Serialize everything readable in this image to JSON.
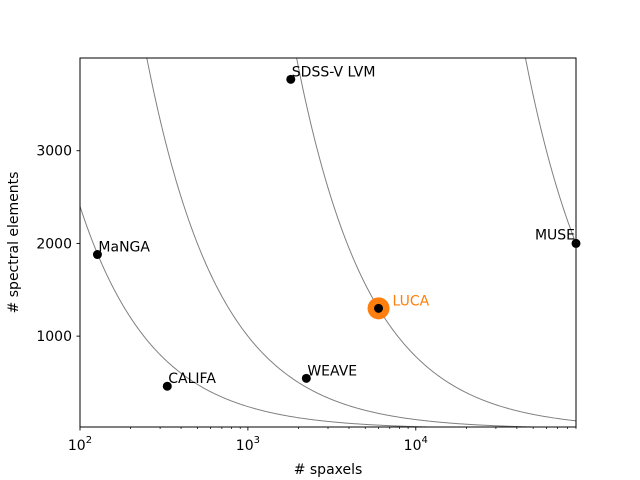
{
  "chart_data": {
    "type": "scatter",
    "xlabel": "# spaxels",
    "ylabel": "# spectral elements",
    "xscale": "log",
    "xlim": [
      100,
      90000
    ],
    "ylim": [
      20,
      4000
    ],
    "grid": false,
    "x_ticks": [
      {
        "value": 100,
        "base": "10",
        "exp": "2"
      },
      {
        "value": 1000,
        "base": "10",
        "exp": "3"
      },
      {
        "value": 10000,
        "base": "10",
        "exp": "4"
      }
    ],
    "y_ticks": [
      {
        "value": 1000,
        "label": "1000"
      },
      {
        "value": 2000,
        "label": "2000"
      },
      {
        "value": 3000,
        "label": "3000"
      }
    ],
    "points": [
      {
        "name": "MaNGA",
        "x": 127,
        "y": 1880,
        "label_anchor": "start"
      },
      {
        "name": "CALIFA",
        "x": 331,
        "y": 460,
        "label_anchor": "start"
      },
      {
        "name": "SDSS-V LVM",
        "x": 1801,
        "y": 3770,
        "label_anchor": "start"
      },
      {
        "name": "WEAVE",
        "x": 2229,
        "y": 545,
        "label_anchor": "start"
      },
      {
        "name": "MUSE",
        "x": 90000,
        "y": 2000,
        "label_anchor": "end"
      },
      {
        "name": "LUCA",
        "x": 6000,
        "y": 1300,
        "label_anchor": "start",
        "highlight": true
      }
    ],
    "iso_curves": [
      {
        "product": 240000
      },
      {
        "product": 1000000
      },
      {
        "product": 7800000
      },
      {
        "product": 180000000
      }
    ],
    "colors": {
      "point": "#000000",
      "curve": "#808080",
      "highlight": "#ff7f0e"
    }
  }
}
